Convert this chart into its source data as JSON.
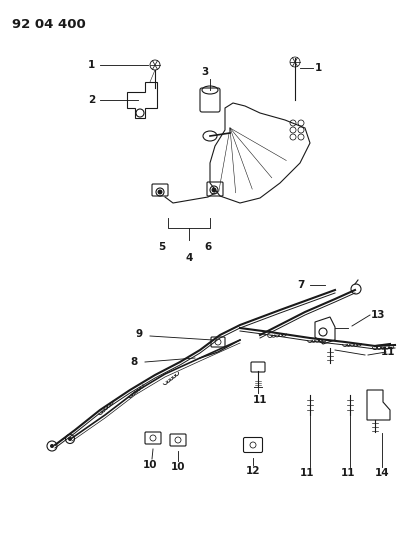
{
  "title": "92 04 400",
  "bg_color": "#ffffff",
  "figsize": [
    4.03,
    5.33
  ],
  "dpi": 100,
  "line_color": "#1a1a1a",
  "label_fontsize": 7.5
}
